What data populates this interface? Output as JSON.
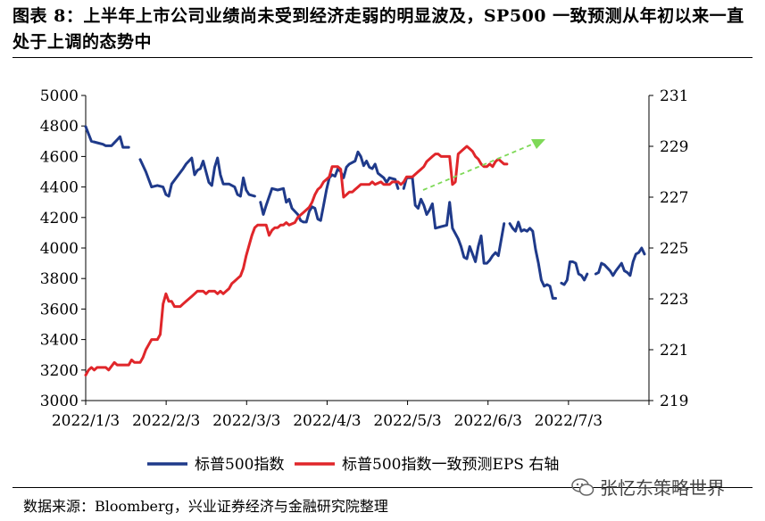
{
  "header": {
    "title": "图表 8：上半年上市公司业绩尚未受到经济走弱的明显波及，SP500 一致预测从年初以来一直处于上调的态势中"
  },
  "footer": {
    "source": "数据来源：Bloomberg，兴业证券经济与金融研究院整理",
    "watermark": "张忆东策略世界"
  },
  "colors": {
    "series_left": "#1f3a8a",
    "series_right": "#e0262a",
    "arrow": "#7ed957"
  },
  "chart_data": {
    "type": "line",
    "x_tick_labels": [
      "2022/1/3",
      "2022/2/3",
      "2022/3/3",
      "2022/4/3",
      "2022/5/3",
      "2022/6/3",
      "2022/7/3"
    ],
    "y_left": {
      "min": 3000,
      "max": 5000,
      "step": 200,
      "ticks": [
        "3000",
        "3200",
        "3400",
        "3600",
        "3800",
        "4000",
        "4200",
        "4400",
        "4600",
        "4800",
        "5000"
      ]
    },
    "y_right": {
      "min": 219,
      "max": 231,
      "step": 2,
      "ticks": [
        "219",
        "221",
        "223",
        "225",
        "227",
        "229",
        "231"
      ]
    },
    "series": [
      {
        "name": "标普500指数",
        "axis": "left",
        "points": [
          [
            0,
            4796
          ],
          [
            2,
            4700
          ],
          [
            4,
            4690
          ],
          [
            6,
            4680
          ],
          [
            7,
            4670
          ],
          [
            9,
            4670
          ],
          [
            11,
            4710
          ],
          [
            12,
            4730
          ],
          [
            13,
            4660
          ],
          [
            15,
            4660
          ],
          [
            null,
            null
          ],
          [
            19,
            4580
          ],
          [
            21,
            4500
          ],
          [
            23,
            4400
          ],
          [
            25,
            4410
          ],
          [
            27,
            4400
          ],
          [
            28,
            4350
          ],
          [
            29,
            4340
          ],
          [
            30,
            4420
          ],
          [
            32,
            4470
          ],
          [
            34,
            4520
          ],
          [
            35,
            4550
          ],
          [
            37,
            4590
          ],
          [
            38,
            4480
          ],
          [
            39,
            4510
          ],
          [
            40,
            4520
          ],
          [
            41,
            4570
          ],
          [
            42,
            4500
          ],
          [
            43,
            4430
          ],
          [
            44,
            4410
          ],
          [
            45,
            4530
          ],
          [
            46,
            4590
          ],
          [
            47,
            4480
          ],
          [
            48,
            4420
          ],
          [
            50,
            4420
          ],
          [
            52,
            4400
          ],
          [
            53,
            4350
          ],
          [
            54,
            4340
          ],
          [
            55,
            4460
          ],
          [
            56,
            4380
          ],
          [
            57,
            4350
          ],
          [
            59,
            4340
          ],
          [
            null,
            null
          ],
          [
            61,
            4300
          ],
          [
            62,
            4220
          ],
          [
            63,
            4280
          ],
          [
            65,
            4390
          ],
          [
            67,
            4380
          ],
          [
            69,
            4390
          ],
          [
            70,
            4300
          ],
          [
            71,
            4320
          ],
          [
            72,
            4260
          ],
          [
            74,
            4220
          ],
          [
            75,
            4180
          ],
          [
            76,
            4170
          ],
          [
            77,
            4170
          ],
          [
            78,
            4240
          ],
          [
            79,
            4270
          ],
          [
            80,
            4260
          ],
          [
            81,
            4190
          ],
          [
            82,
            4180
          ],
          [
            83,
            4280
          ],
          [
            84,
            4380
          ],
          [
            85,
            4460
          ],
          [
            86,
            4480
          ],
          [
            87,
            4470
          ],
          [
            88,
            4520
          ],
          [
            89,
            4500
          ],
          [
            90,
            4460
          ],
          [
            91,
            4530
          ],
          [
            92,
            4550
          ],
          [
            94,
            4570
          ],
          [
            95,
            4630
          ],
          [
            96,
            4600
          ],
          [
            97,
            4540
          ],
          [
            98,
            4570
          ],
          [
            99,
            4530
          ],
          [
            100,
            4520
          ],
          [
            101,
            4550
          ],
          [
            102,
            4490
          ],
          [
            104,
            4460
          ],
          [
            105,
            4430
          ],
          [
            106,
            4460
          ],
          [
            108,
            4450
          ],
          [
            109,
            4390
          ],
          [
            null,
            null
          ],
          [
            111,
            4390
          ],
          [
            112,
            4460
          ],
          [
            114,
            4460
          ],
          [
            115,
            4280
          ],
          [
            116,
            4260
          ],
          [
            117,
            4320
          ],
          [
            118,
            4280
          ],
          [
            119,
            4220
          ],
          [
            120,
            4250
          ],
          [
            121,
            4290
          ],
          [
            122,
            4130
          ],
          [
            124,
            4140
          ],
          [
            126,
            4150
          ],
          [
            127,
            4300
          ],
          [
            128,
            4130
          ],
          [
            130,
            4060
          ],
          [
            131,
            4010
          ],
          [
            132,
            3940
          ],
          [
            133,
            3930
          ],
          [
            134,
            4010
          ],
          [
            135,
            3960
          ],
          [
            136,
            3910
          ],
          [
            137,
            4010
          ],
          [
            138,
            4080
          ],
          [
            139,
            3900
          ],
          [
            140,
            3900
          ],
          [
            141,
            3920
          ],
          [
            142,
            3950
          ],
          [
            143,
            3970
          ],
          [
            144,
            3950
          ],
          [
            146,
            4160
          ],
          [
            null,
            null
          ],
          [
            148,
            4160
          ],
          [
            149,
            4130
          ],
          [
            150,
            4110
          ],
          [
            151,
            4170
          ],
          [
            152,
            4110
          ],
          [
            153,
            4120
          ],
          [
            154,
            4110
          ],
          [
            155,
            4130
          ],
          [
            156,
            4110
          ],
          [
            157,
            3990
          ],
          [
            158,
            3900
          ],
          [
            159,
            3790
          ],
          [
            160,
            3750
          ],
          [
            161,
            3760
          ],
          [
            162,
            3750
          ],
          [
            163,
            3670
          ],
          [
            164,
            3670
          ],
          [
            null,
            null
          ],
          [
            166,
            3770
          ],
          [
            167,
            3760
          ],
          [
            168,
            3790
          ],
          [
            169,
            3910
          ],
          [
            170,
            3910
          ],
          [
            171,
            3900
          ],
          [
            172,
            3830
          ],
          [
            173,
            3820
          ],
          [
            174,
            3790
          ],
          [
            175,
            3830
          ],
          [
            null,
            null
          ],
          [
            178,
            3830
          ],
          [
            179,
            3840
          ],
          [
            180,
            3900
          ],
          [
            181,
            3890
          ],
          [
            182,
            3870
          ],
          [
            183,
            3850
          ],
          [
            184,
            3820
          ],
          [
            185,
            3850
          ],
          [
            187,
            3900
          ],
          [
            188,
            3850
          ],
          [
            189,
            3840
          ],
          [
            190,
            3820
          ],
          [
            191,
            3910
          ],
          [
            192,
            3960
          ],
          [
            193,
            3970
          ],
          [
            194,
            4000
          ],
          [
            195,
            3960
          ]
        ]
      },
      {
        "name": "标普500指数一致预测EPS 右轴",
        "axis": "right",
        "points": [
          [
            0,
            220.0
          ],
          [
            1,
            220.2
          ],
          [
            2,
            220.3
          ],
          [
            3,
            220.2
          ],
          [
            4,
            220.3
          ],
          [
            5,
            220.3
          ],
          [
            7,
            220.3
          ],
          [
            8,
            220.2
          ],
          [
            10,
            220.5
          ],
          [
            11,
            220.4
          ],
          [
            13,
            220.4
          ],
          [
            15,
            220.4
          ],
          [
            16,
            220.6
          ],
          [
            17,
            220.5
          ],
          [
            19,
            220.5
          ],
          [
            20,
            220.7
          ],
          [
            21,
            221.0
          ],
          [
            22,
            221.2
          ],
          [
            23,
            221.4
          ],
          [
            25,
            221.4
          ],
          [
            26,
            221.6
          ],
          [
            27,
            222.8
          ],
          [
            28,
            223.2
          ],
          [
            29,
            222.9
          ],
          [
            30,
            222.9
          ],
          [
            31,
            222.7
          ],
          [
            32,
            222.7
          ],
          [
            33,
            222.7
          ],
          [
            34,
            222.8
          ],
          [
            35,
            222.9
          ],
          [
            36,
            223.0
          ],
          [
            37,
            223.1
          ],
          [
            38,
            223.2
          ],
          [
            39,
            223.3
          ],
          [
            40,
            223.3
          ],
          [
            41,
            223.3
          ],
          [
            42,
            223.2
          ],
          [
            43,
            223.3
          ],
          [
            44,
            223.3
          ],
          [
            45,
            223.3
          ],
          [
            46,
            223.2
          ],
          [
            47,
            223.3
          ],
          [
            48,
            223.2
          ],
          [
            49,
            223.3
          ],
          [
            50,
            223.4
          ],
          [
            51,
            223.6
          ],
          [
            52,
            223.7
          ],
          [
            53,
            223.8
          ],
          [
            54,
            223.9
          ],
          [
            55,
            224.2
          ],
          [
            56,
            224.7
          ],
          [
            57,
            225.1
          ],
          [
            58,
            225.5
          ],
          [
            59,
            225.8
          ],
          [
            60,
            225.9
          ],
          [
            61,
            225.9
          ],
          [
            62,
            225.9
          ],
          [
            63,
            225.9
          ],
          [
            64,
            225.5
          ],
          [
            65,
            225.7
          ],
          [
            66,
            225.8
          ],
          [
            67,
            225.8
          ],
          [
            68,
            225.9
          ],
          [
            69,
            225.9
          ],
          [
            70,
            226.0
          ],
          [
            71,
            225.9
          ],
          [
            73,
            226.0
          ],
          [
            74,
            226.2
          ],
          [
            75,
            226.3
          ],
          [
            76,
            226.4
          ],
          [
            77,
            226.5
          ],
          [
            78,
            226.6
          ],
          [
            79,
            226.8
          ],
          [
            80,
            227.1
          ],
          [
            81,
            227.3
          ],
          [
            82,
            227.4
          ],
          [
            83,
            227.6
          ],
          [
            84,
            227.7
          ],
          [
            85,
            227.8
          ],
          [
            86,
            228.2
          ],
          [
            87,
            228.2
          ],
          [
            88,
            228.2
          ],
          [
            89,
            228.1
          ],
          [
            90,
            227.0
          ],
          [
            91,
            227.1
          ],
          [
            92,
            227.2
          ],
          [
            93,
            227.2
          ],
          [
            94,
            227.3
          ],
          [
            95,
            227.4
          ],
          [
            96,
            227.5
          ],
          [
            97,
            227.5
          ],
          [
            98,
            227.5
          ],
          [
            99,
            227.5
          ],
          [
            100,
            227.6
          ],
          [
            101,
            227.5
          ],
          [
            103,
            227.6
          ],
          [
            104,
            227.5
          ],
          [
            105,
            227.5
          ],
          [
            106,
            227.5
          ],
          [
            107,
            227.6
          ],
          [
            109,
            227.6
          ],
          [
            110,
            227.5
          ],
          [
            111,
            227.6
          ],
          [
            112,
            227.8
          ],
          [
            113,
            227.8
          ],
          [
            114,
            227.8
          ],
          [
            116,
            228.0
          ],
          [
            117,
            228.1
          ],
          [
            118,
            228.2
          ],
          [
            119,
            228.4
          ],
          [
            120,
            228.5
          ],
          [
            121,
            228.6
          ],
          [
            122,
            228.7
          ],
          [
            123,
            228.7
          ],
          [
            124,
            228.6
          ],
          [
            125,
            228.6
          ],
          [
            126,
            228.6
          ],
          [
            127,
            228.6
          ],
          [
            128,
            227.5
          ],
          [
            129,
            227.6
          ],
          [
            130,
            228.7
          ],
          [
            131,
            228.8
          ],
          [
            132,
            228.9
          ],
          [
            133,
            229.0
          ],
          [
            134,
            228.9
          ],
          [
            135,
            228.8
          ],
          [
            136,
            228.6
          ],
          [
            137,
            228.5
          ],
          [
            138,
            228.3
          ],
          [
            139,
            228.2
          ],
          [
            140,
            228.2
          ],
          [
            141,
            228.3
          ],
          [
            142,
            228.2
          ],
          [
            143,
            228.4
          ],
          [
            144,
            228.5
          ],
          [
            145,
            228.4
          ],
          [
            146,
            228.3
          ],
          [
            147,
            228.3
          ]
        ]
      }
    ],
    "annotations": [
      {
        "type": "dashed-arrow",
        "direction": "up-right"
      }
    ]
  }
}
